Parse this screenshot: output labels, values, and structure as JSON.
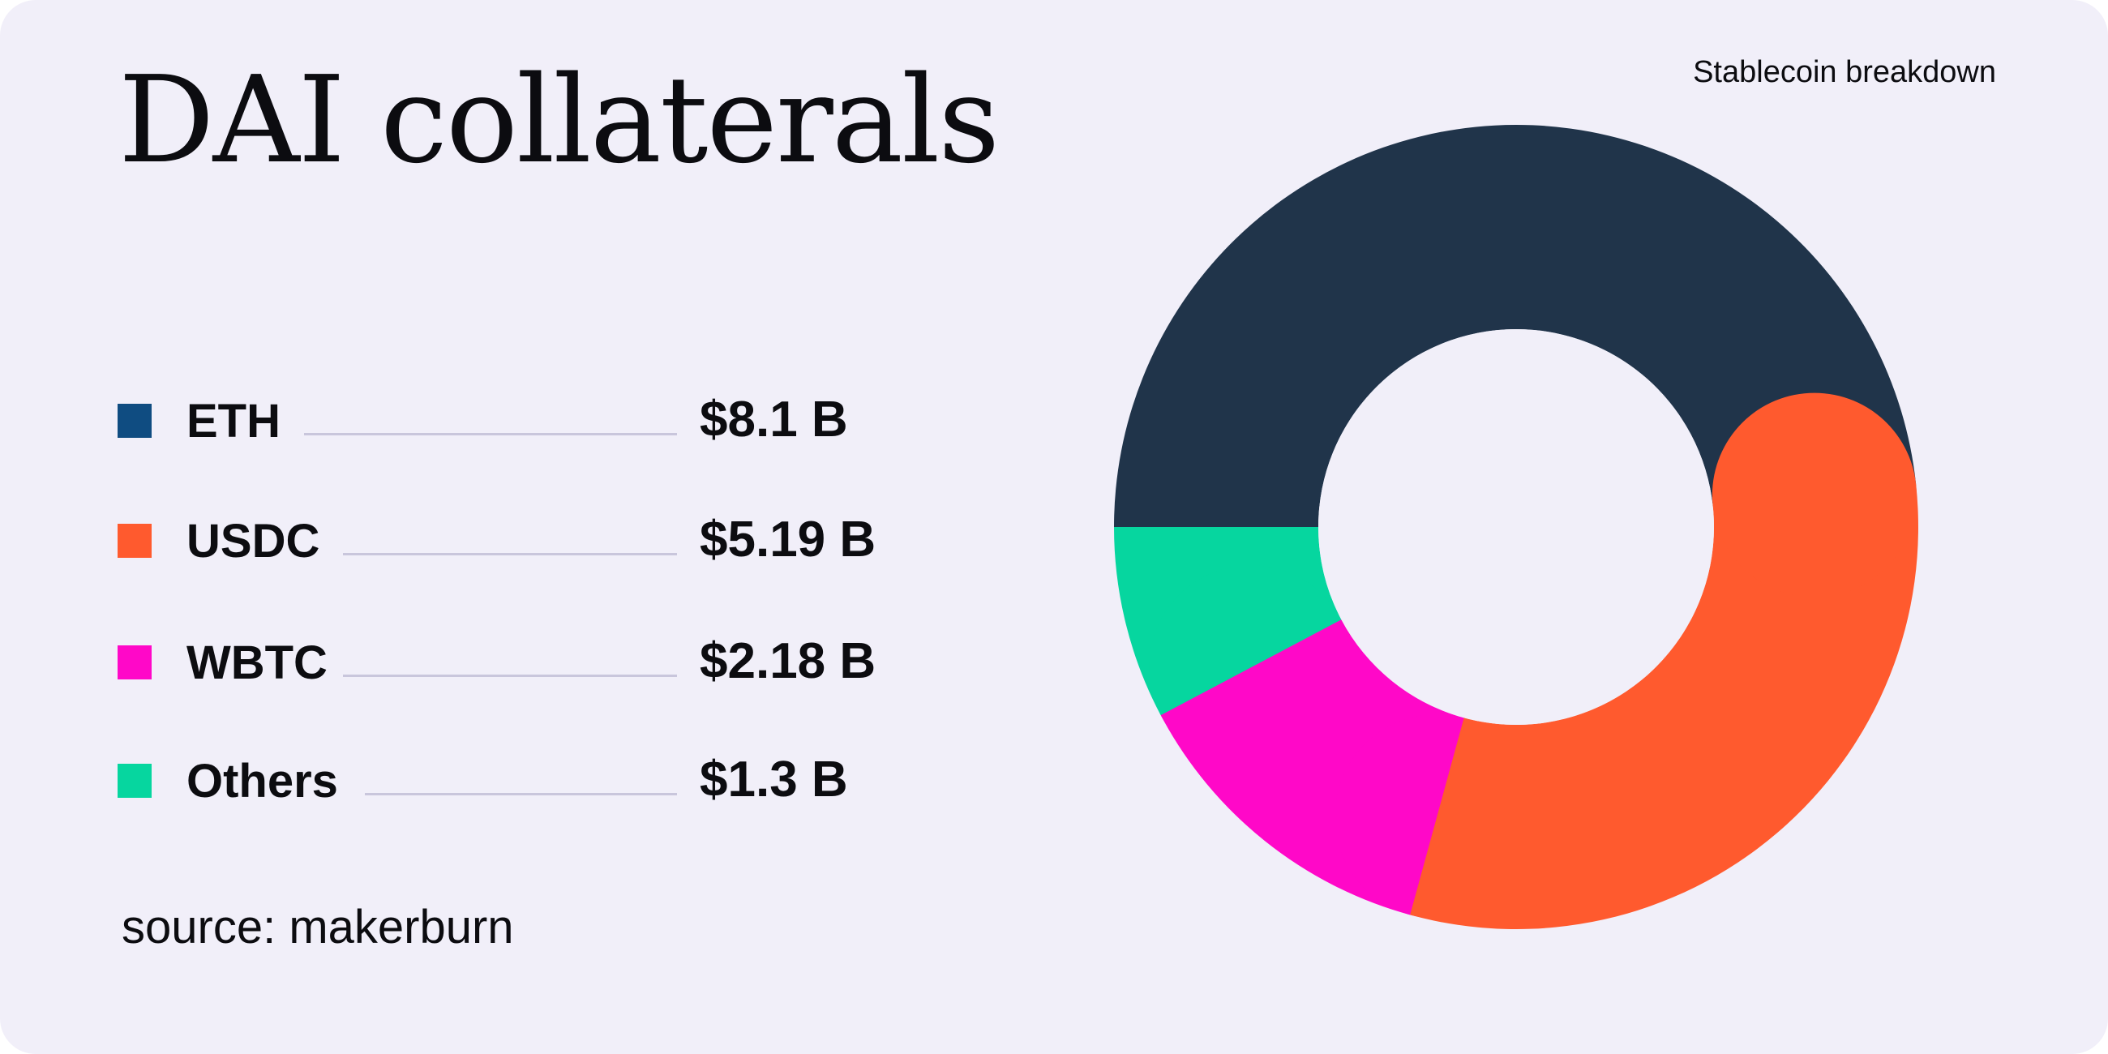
{
  "title": "DAI collaterals",
  "subtitle": "Stablecoin breakdown",
  "source": "source: makerburn",
  "colors": {
    "background": "#f1eff9",
    "text": "#0c0c10",
    "leader_line": "#c9c6dc"
  },
  "chart_data": {
    "type": "pie",
    "variant": "donut",
    "unit": "B",
    "currency": "$",
    "series": [
      {
        "name": "ETH",
        "value": 8.1,
        "label": "$8.1 B",
        "legend_color": "#0f4c81",
        "slice_color": "#20344a"
      },
      {
        "name": "USDC",
        "value": 5.19,
        "label": "$5.19 B",
        "legend_color": "#ff5a2e",
        "slice_color": "#ff5a2e"
      },
      {
        "name": "WBTC",
        "value": 2.18,
        "label": "$2.18 B",
        "legend_color": "#ff08c8",
        "slice_color": "#ff08c8"
      },
      {
        "name": "Others",
        "value": 1.3,
        "label": "$1.3 B",
        "legend_color": "#06d69f",
        "slice_color": "#06d69f"
      }
    ],
    "legend_position": "left"
  }
}
